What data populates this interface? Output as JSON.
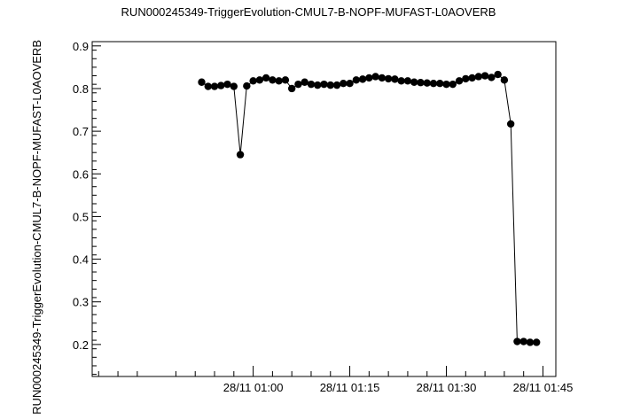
{
  "chart_data": {
    "type": "scatter",
    "title": "RUN000245349-TriggerEvolution-CMUL7-B-NOPF-MUFAST-L0AOVERB",
    "xlabel": "",
    "ylabel": "RUN000245349-TriggerEvolution-CMUL7-B-NOPF-MUFAST-L0AOVERB",
    "x_unit": "minutes after 28/11 00:00",
    "xlim": [
      35,
      107
    ],
    "ylim": [
      0.125,
      0.91
    ],
    "x_ticks": [
      {
        "value": 60,
        "label": "28/11 01:00"
      },
      {
        "value": 75,
        "label": "28/11 01:15"
      },
      {
        "value": 90,
        "label": "28/11 01:30"
      },
      {
        "value": 105,
        "label": "28/11 01:45"
      }
    ],
    "y_ticks": [
      {
        "value": 0.2,
        "label": "0.2"
      },
      {
        "value": 0.3,
        "label": "0.3"
      },
      {
        "value": 0.4,
        "label": "0.4"
      },
      {
        "value": 0.5,
        "label": "0.5"
      },
      {
        "value": 0.6,
        "label": "0.6"
      },
      {
        "value": 0.7,
        "label": "0.7"
      },
      {
        "value": 0.8,
        "label": "0.8"
      },
      {
        "value": 0.9,
        "label": "0.9"
      }
    ],
    "grid": false,
    "series": [
      {
        "marker": "filled-circle",
        "line": "connected",
        "color": "#000000",
        "x": [
          52.0,
          53.0,
          54.0,
          55.0,
          56.0,
          57.0,
          58.0,
          59.0,
          60.0,
          61.0,
          62.0,
          63.0,
          64.0,
          65.0,
          66.0,
          67.0,
          68.0,
          69.0,
          70.0,
          71.0,
          72.0,
          73.0,
          74.0,
          75.0,
          76.0,
          77.0,
          78.0,
          79.0,
          80.0,
          81.0,
          82.0,
          83.0,
          84.0,
          85.0,
          86.0,
          87.0,
          88.0,
          89.0,
          90.0,
          91.0,
          92.0,
          93.0,
          94.0,
          95.0,
          96.0,
          97.0,
          98.0,
          99.0,
          100.0,
          101.0,
          102.0,
          103.0,
          104.0
        ],
        "y": [
          0.815,
          0.805,
          0.805,
          0.807,
          0.81,
          0.805,
          0.645,
          0.806,
          0.818,
          0.82,
          0.825,
          0.82,
          0.818,
          0.82,
          0.8,
          0.81,
          0.815,
          0.81,
          0.808,
          0.81,
          0.808,
          0.808,
          0.812,
          0.812,
          0.82,
          0.822,
          0.825,
          0.828,
          0.825,
          0.823,
          0.822,
          0.818,
          0.818,
          0.815,
          0.814,
          0.813,
          0.812,
          0.812,
          0.81,
          0.81,
          0.818,
          0.823,
          0.825,
          0.828,
          0.83,
          0.826,
          0.833,
          0.82,
          0.717,
          0.207,
          0.207,
          0.205,
          0.205
        ],
        "yerr": [
          0.008,
          0.006,
          0.006,
          0.006,
          0.006,
          0.006,
          0.006,
          0.006,
          0.006,
          0.006,
          0.006,
          0.006,
          0.006,
          0.006,
          0.006,
          0.006,
          0.006,
          0.006,
          0.006,
          0.006,
          0.006,
          0.006,
          0.006,
          0.006,
          0.006,
          0.006,
          0.006,
          0.006,
          0.006,
          0.006,
          0.006,
          0.006,
          0.006,
          0.006,
          0.006,
          0.006,
          0.006,
          0.006,
          0.006,
          0.006,
          0.006,
          0.006,
          0.006,
          0.006,
          0.006,
          0.006,
          0.008,
          0.006,
          0.005,
          0.003,
          0.003,
          0.003,
          0.003
        ]
      }
    ]
  }
}
